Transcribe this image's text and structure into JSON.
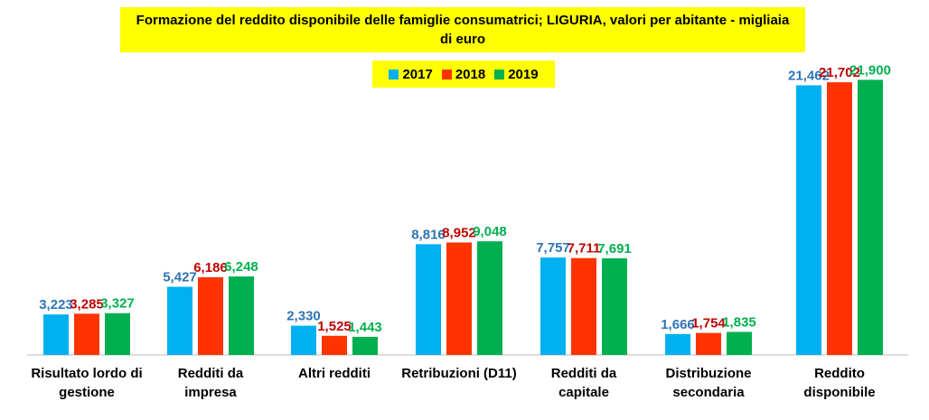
{
  "chart_data": {
    "type": "bar",
    "title": "Formazione del reddito disponibile delle famiglie consumatrici; LIGURIA, valori per abitante - migliaia di euro",
    "categories": [
      [
        "Risultato lordo di",
        "gestione"
      ],
      [
        "Redditi da",
        "impresa"
      ],
      [
        "Altri redditi"
      ],
      [
        "Retribuzioni (D11)"
      ],
      [
        "Redditi da",
        "capitale"
      ],
      [
        "Distribuzione",
        "secondaria"
      ],
      [
        "Reddito",
        "disponibile"
      ]
    ],
    "series": [
      {
        "name": "2017",
        "color": "#00b0f0",
        "label_color": "#2e75b6",
        "values": [
          3.223,
          5.427,
          2.33,
          8.816,
          7.757,
          1.666,
          21.462
        ],
        "labels": [
          "3,223",
          "5,427",
          "2,330",
          "8,816",
          "7,757",
          "1,666",
          "21,462"
        ]
      },
      {
        "name": "2018",
        "color": "#ff3300",
        "label_color": "#c00000",
        "values": [
          3.285,
          6.186,
          1.525,
          8.952,
          7.711,
          1.754,
          21.702
        ],
        "labels": [
          "3,285",
          "6,186",
          "1,525",
          "8,952",
          "7,711",
          "1,754",
          "21,702"
        ]
      },
      {
        "name": "2019",
        "color": "#00b050",
        "label_color": "#00b050",
        "values": [
          3.327,
          6.248,
          1.443,
          9.048,
          7.691,
          1.835,
          21.9
        ],
        "labels": [
          "3,327",
          "6,248",
          "1,443",
          "9,048",
          "7,691",
          "1,835",
          "21,900"
        ]
      }
    ],
    "ylim": [
      0,
      22.5
    ],
    "grid": false,
    "legend_position": "top-center"
  }
}
